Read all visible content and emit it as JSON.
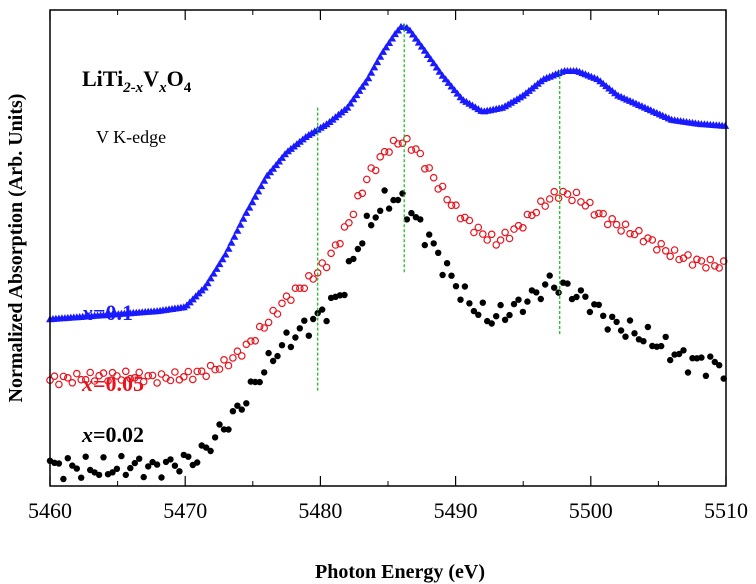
{
  "chart_data": {
    "type": "scatter",
    "title": "",
    "xlabel": "Photon Energy (eV)",
    "ylabel": "Normalized Absorption  (Arb. Units)",
    "xlim": [
      5460,
      5510
    ],
    "xticks": [
      "5460",
      "5470",
      "5480",
      "5490",
      "5500",
      "5510"
    ],
    "y_ticks_labeled": false,
    "grid": false,
    "annotations": {
      "formula": {
        "main": "LiTi",
        "sub1": "2-x",
        "mid": "V",
        "sub2": "x",
        "end": "O",
        "sub3": "4"
      },
      "edge": "V K-edge"
    },
    "series": [
      {
        "name": "x=0.1",
        "var": "x",
        "val": "=0.1",
        "color": "#1a1aff",
        "marker": "triangle",
        "x": [
          5460,
          5462,
          5464,
          5466,
          5468,
          5470,
          5471.5,
          5473,
          5474.5,
          5476,
          5477.5,
          5479,
          5480.5,
          5482,
          5483.5,
          5484.5,
          5485.5,
          5486,
          5486.5,
          5487.5,
          5489,
          5490.5,
          5492,
          5493.5,
          5495,
          5496.5,
          5498,
          5499,
          5500.5,
          5502,
          5504,
          5506,
          5508,
          5510
        ],
        "y": [
          0.16,
          0.165,
          0.17,
          0.175,
          0.18,
          0.19,
          0.24,
          0.32,
          0.42,
          0.51,
          0.57,
          0.61,
          0.64,
          0.68,
          0.75,
          0.81,
          0.86,
          0.88,
          0.875,
          0.83,
          0.76,
          0.7,
          0.67,
          0.68,
          0.71,
          0.75,
          0.77,
          0.77,
          0.75,
          0.71,
          0.68,
          0.65,
          0.64,
          0.635
        ]
      },
      {
        "name": "x=0.05",
        "var": "x",
        "val": "=0.05",
        "color": "#e8141e",
        "marker": "open-circle",
        "x": [
          5460,
          5462,
          5464,
          5466,
          5468,
          5470,
          5471.5,
          5473,
          5474.5,
          5476,
          5477.5,
          5479,
          5480.5,
          5482,
          5483.5,
          5485,
          5486,
          5487,
          5488.5,
          5490,
          5491.5,
          5493,
          5494.5,
          5496,
          5497.5,
          5499,
          5500.5,
          5502,
          5504,
          5506,
          5508,
          5510
        ],
        "y": [
          0.01,
          0.015,
          0.02,
          0.02,
          0.015,
          0.02,
          0.03,
          0.05,
          0.09,
          0.15,
          0.21,
          0.25,
          0.3,
          0.39,
          0.51,
          0.58,
          0.6,
          0.58,
          0.5,
          0.43,
          0.38,
          0.35,
          0.38,
          0.43,
          0.47,
          0.46,
          0.42,
          0.39,
          0.36,
          0.32,
          0.3,
          0.29
        ]
      },
      {
        "name": "x=0.02",
        "var": "x",
        "val": "=0.02",
        "color": "#000000",
        "marker": "filled-circle",
        "x": [
          5460,
          5462,
          5464,
          5466,
          5468,
          5470,
          5471,
          5472,
          5473,
          5474,
          5475.5,
          5477,
          5478.5,
          5480,
          5481.5,
          5483,
          5484.5,
          5485.5,
          5486.5,
          5488,
          5489.5,
          5491,
          5492.5,
          5494,
          5495.5,
          5497,
          5498.5,
          5500,
          5501.5,
          5503,
          5505,
          5507,
          5509,
          5510
        ],
        "y": [
          -0.2,
          -0.205,
          -0.21,
          -0.2,
          -0.205,
          -0.19,
          -0.18,
          -0.14,
          -0.1,
          -0.06,
          0.02,
          0.09,
          0.13,
          0.17,
          0.22,
          0.36,
          0.44,
          0.46,
          0.43,
          0.36,
          0.27,
          0.2,
          0.16,
          0.18,
          0.21,
          0.25,
          0.23,
          0.2,
          0.15,
          0.13,
          0.1,
          0.06,
          0.05,
          0.04
        ]
      }
    ],
    "vertical_markers": [
      5479.8,
      5486.2,
      5497.7
    ],
    "marker_color": "#20c020"
  }
}
